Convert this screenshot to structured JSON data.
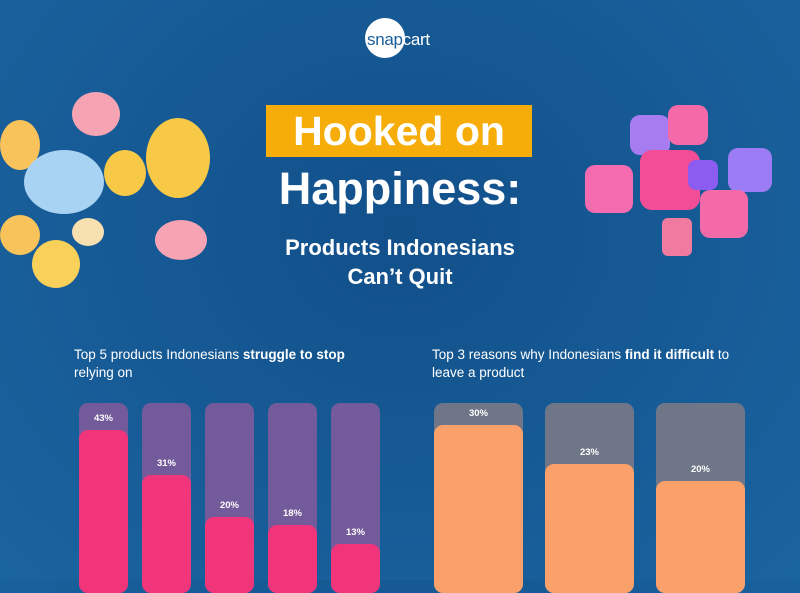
{
  "brand": {
    "logo_text_a": "snap",
    "logo_text_b": "cart"
  },
  "title": {
    "highlight": "Hooked on",
    "line2": "Happiness:",
    "subtitle_1": "Products Indonesians",
    "subtitle_2": "Can’t Quit"
  },
  "colors": {
    "highlight": "#f6ad09",
    "pink": "#f0357a",
    "purple_track": "#735a9a",
    "orange": "#f9a06b",
    "grey_track": "#6e7688"
  },
  "chart_data": [
    {
      "type": "bar",
      "title_pre": "Top 5 products Indonesians ",
      "title_bold": "struggle to stop",
      "title_post": " relying on",
      "values": [
        43,
        31,
        20,
        18,
        13
      ],
      "labels": [
        "43%",
        "31%",
        "20%",
        "18%",
        "13%"
      ],
      "ylim": [
        0,
        50
      ]
    },
    {
      "type": "bar",
      "title_pre": "Top 3 reasons why Indonesians ",
      "title_bold": "find it difficult",
      "title_post": " to leave a product",
      "values": [
        30,
        23,
        20
      ],
      "labels": [
        "30%",
        "23%",
        "20%"
      ],
      "ylim": [
        0,
        34
      ]
    }
  ]
}
